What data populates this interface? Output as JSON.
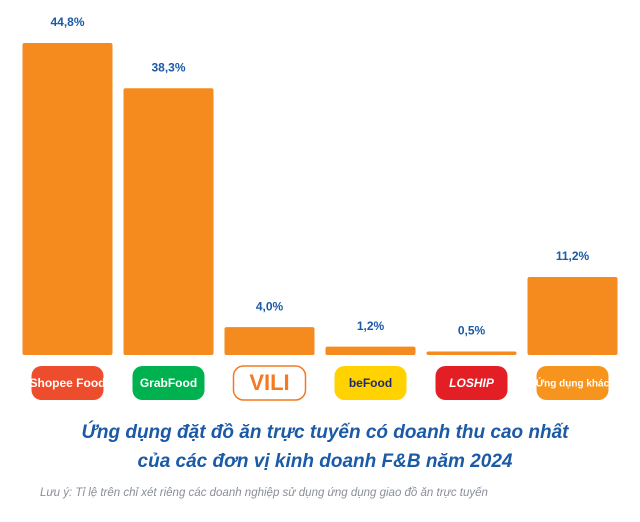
{
  "chart_data": {
    "type": "bar",
    "title": [
      "Ứng dụng đặt đồ ăn trực tuyến có doanh thu cao nhất",
      "của các đơn vị kinh doanh F&B năm 2024"
    ],
    "note": "Lưu ý: Tỉ lệ trên chỉ xét riêng các doanh nghiệp sử dụng ứng dụng giao đồ ăn trực tuyến",
    "categories": [
      "Shopee Food",
      "GrabFood",
      "VILI",
      "beFood",
      "LOSHIP",
      "Ứng dụng khác"
    ],
    "values": [
      44.8,
      38.3,
      4.0,
      1.2,
      0.5,
      11.2
    ],
    "value_labels": [
      "44,8%",
      "38,3%",
      "4,0%",
      "1,2%",
      "0,5%",
      "11,2%"
    ],
    "color": "#f58a1f"
  }
}
